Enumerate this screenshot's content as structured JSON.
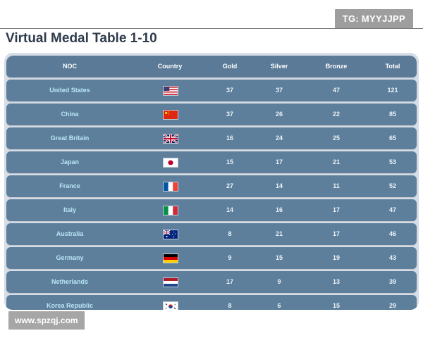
{
  "badge": "TG: MYYJJPP",
  "title": "Virtual Medal Table 1-10",
  "columns": [
    "NOC",
    "Country",
    "Gold",
    "Silver",
    "Bronze",
    "Total"
  ],
  "rows": [
    {
      "noc": "United States",
      "flag": "united-states-flag-icon",
      "gold": "37",
      "silver": "37",
      "bronze": "47",
      "total": "121"
    },
    {
      "noc": "China",
      "flag": "china-flag-icon",
      "gold": "37",
      "silver": "26",
      "bronze": "22",
      "total": "85"
    },
    {
      "noc": "Great Britain",
      "flag": "great-britain-flag-icon",
      "gold": "16",
      "silver": "24",
      "bronze": "25",
      "total": "65"
    },
    {
      "noc": "Japan",
      "flag": "japan-flag-icon",
      "gold": "15",
      "silver": "17",
      "bronze": "21",
      "total": "53"
    },
    {
      "noc": "France",
      "flag": "france-flag-icon",
      "gold": "27",
      "silver": "14",
      "bronze": "11",
      "total": "52"
    },
    {
      "noc": "Italy",
      "flag": "italy-flag-icon",
      "gold": "14",
      "silver": "16",
      "bronze": "17",
      "total": "47"
    },
    {
      "noc": "Australia",
      "flag": "australia-flag-icon",
      "gold": "8",
      "silver": "21",
      "bronze": "17",
      "total": "46"
    },
    {
      "noc": "Germany",
      "flag": "germany-flag-icon",
      "gold": "9",
      "silver": "15",
      "bronze": "19",
      "total": "43"
    },
    {
      "noc": "Netherlands",
      "flag": "netherlands-flag-icon",
      "gold": "17",
      "silver": "9",
      "bronze": "13",
      "total": "39"
    },
    {
      "noc": "Korea Republic",
      "flag": "korea-republic-flag-icon",
      "gold": "8",
      "silver": "6",
      "bronze": "15",
      "total": "29"
    }
  ],
  "watermark": "www.spzqj.com",
  "colors": {
    "row": "#5d7f9c",
    "card": "#d6dde6",
    "noc_text": "#b9e6f5",
    "title": "#2f3b4c"
  }
}
